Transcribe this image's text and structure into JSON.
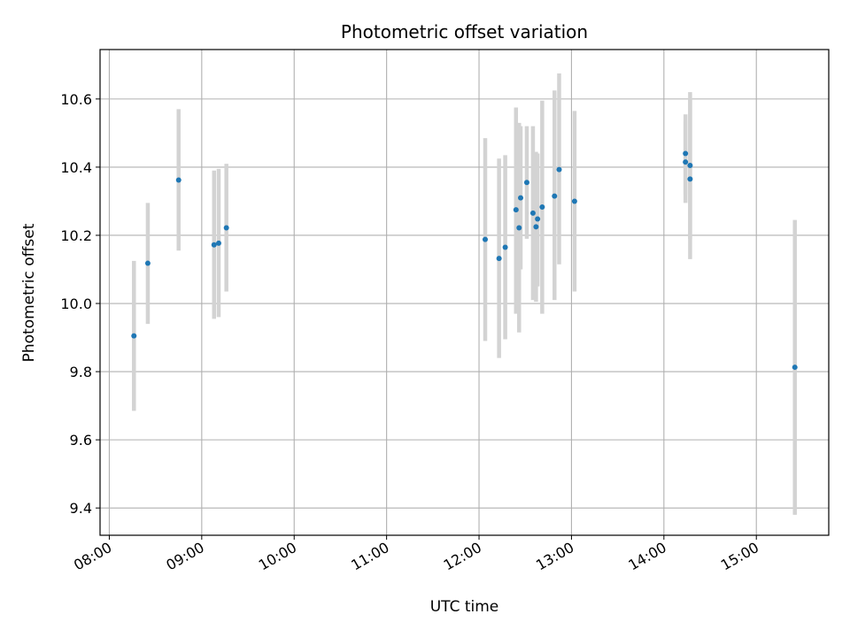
{
  "chart_data": {
    "type": "scatter",
    "title": "Photometric offset variation",
    "xlabel": "UTC time",
    "ylabel": "Photometric offset",
    "x_unit": "HH:MM",
    "xlim": [
      "07:54",
      "15:47"
    ],
    "ylim": [
      9.32,
      10.745
    ],
    "x_ticks": [
      "08:00",
      "09:00",
      "10:00",
      "11:00",
      "12:00",
      "13:00",
      "14:00",
      "15:00"
    ],
    "y_ticks": [
      9.4,
      9.6,
      9.8,
      10.0,
      10.2,
      10.4,
      10.6
    ],
    "y_tick_labels": [
      "9.4",
      "9.6",
      "9.8",
      "10.0",
      "10.2",
      "10.4",
      "10.6"
    ],
    "grid": true,
    "marker_color": "#1f77b4",
    "errorbar_color": "#d3d3d3",
    "points": [
      {
        "x": "08:16",
        "y": 9.905,
        "lo": 9.685,
        "hi": 10.125
      },
      {
        "x": "08:25",
        "y": 10.118,
        "lo": 9.94,
        "hi": 10.295
      },
      {
        "x": "08:45",
        "y": 10.362,
        "lo": 10.155,
        "hi": 10.57
      },
      {
        "x": "09:08",
        "y": 10.172,
        "lo": 9.955,
        "hi": 10.39
      },
      {
        "x": "09:11",
        "y": 10.177,
        "lo": 9.96,
        "hi": 10.395
      },
      {
        "x": "09:16",
        "y": 10.222,
        "lo": 10.035,
        "hi": 10.41
      },
      {
        "x": "12:04",
        "y": 10.188,
        "lo": 9.89,
        "hi": 10.485
      },
      {
        "x": "12:13",
        "y": 10.132,
        "lo": 9.84,
        "hi": 10.425
      },
      {
        "x": "12:17",
        "y": 10.165,
        "lo": 9.895,
        "hi": 10.435
      },
      {
        "x": "12:24",
        "y": 10.275,
        "lo": 9.97,
        "hi": 10.575
      },
      {
        "x": "12:26",
        "y": 10.222,
        "lo": 9.915,
        "hi": 10.53
      },
      {
        "x": "12:27",
        "y": 10.31,
        "lo": 10.1,
        "hi": 10.52
      },
      {
        "x": "12:31",
        "y": 10.355,
        "lo": 10.19,
        "hi": 10.52
      },
      {
        "x": "12:35",
        "y": 10.265,
        "lo": 10.01,
        "hi": 10.52
      },
      {
        "x": "12:37",
        "y": 10.225,
        "lo": 10.005,
        "hi": 10.445
      },
      {
        "x": "12:38",
        "y": 10.248,
        "lo": 10.05,
        "hi": 10.44
      },
      {
        "x": "12:41",
        "y": 10.283,
        "lo": 9.97,
        "hi": 10.595
      },
      {
        "x": "12:49",
        "y": 10.315,
        "lo": 10.01,
        "hi": 10.625
      },
      {
        "x": "12:52",
        "y": 10.393,
        "lo": 10.115,
        "hi": 10.675
      },
      {
        "x": "13:02",
        "y": 10.3,
        "lo": 10.035,
        "hi": 10.565
      },
      {
        "x": "14:14",
        "y": 10.44,
        "lo": 10.32,
        "hi": 10.555
      },
      {
        "x": "14:14",
        "y": 10.415,
        "lo": 10.295,
        "hi": 10.535
      },
      {
        "x": "14:17",
        "y": 10.405,
        "lo": 10.19,
        "hi": 10.62
      },
      {
        "x": "14:17",
        "y": 10.365,
        "lo": 10.13,
        "hi": 10.6
      },
      {
        "x": "15:25",
        "y": 9.813,
        "lo": 9.38,
        "hi": 10.245
      }
    ]
  }
}
